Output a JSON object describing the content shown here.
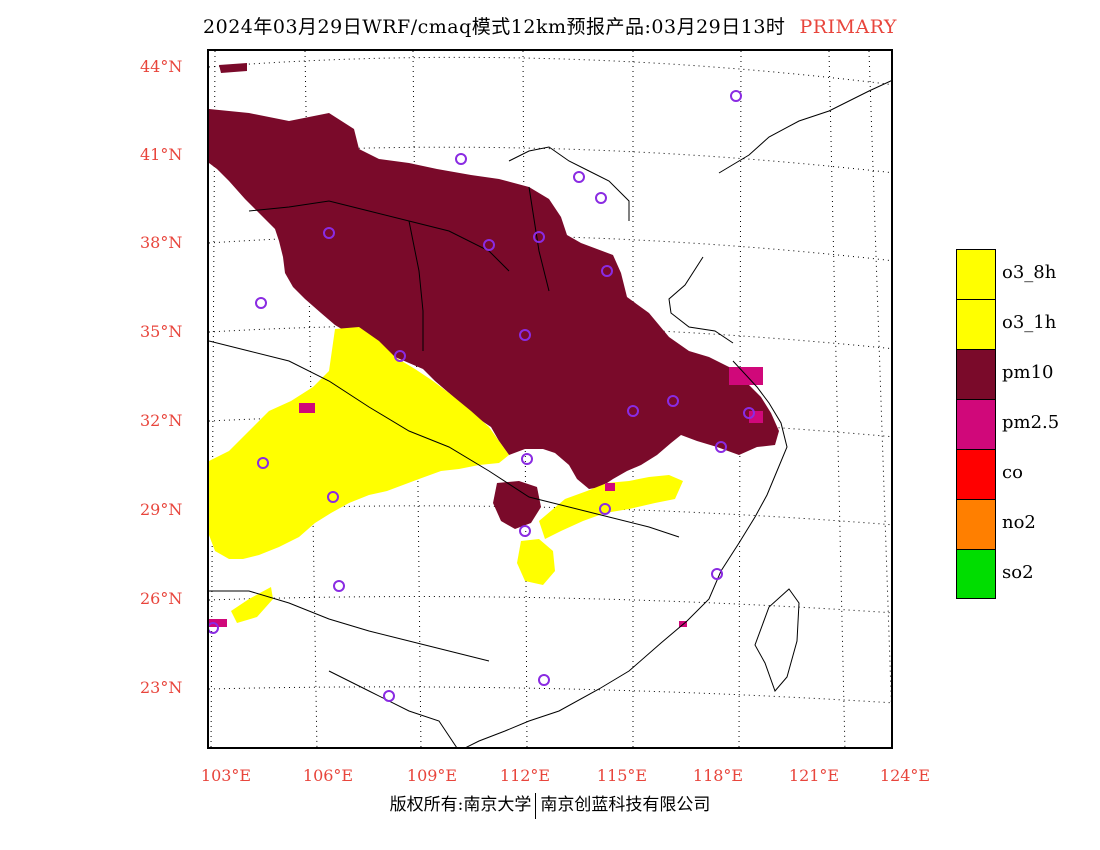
{
  "title": "2024年03月29日WRF/cmaq模式12km预报产品:03月29日13时",
  "title_tag": "PRIMARY",
  "colors": {
    "accent": "#e8453c",
    "pm10": "#7a0a2a",
    "o3": "#ffff00",
    "pm25": "#d0087a",
    "station": "#8a2be2"
  },
  "lat_labels": [
    "44°N",
    "41°N",
    "38°N",
    "35°N",
    "32°N",
    "29°N",
    "26°N",
    "23°N"
  ],
  "lon_labels": [
    "103°E",
    "106°E",
    "109°E",
    "112°E",
    "115°E",
    "118°E",
    "121°E",
    "124°E"
  ],
  "legend": [
    {
      "label": "o3_8h",
      "color": "#ffff00"
    },
    {
      "label": "o3_1h",
      "color": "#ffff00"
    },
    {
      "label": "pm10",
      "color": "#7a0a2a"
    },
    {
      "label": "pm2.5",
      "color": "#d0087a"
    },
    {
      "label": "co",
      "color": "#ff0000"
    },
    {
      "label": "no2",
      "color": "#ff7f00"
    },
    {
      "label": "so2",
      "color": "#00dd00"
    }
  ],
  "footer": {
    "left": "版权所有:南京大学",
    "right": "南京创蓝科技有限公司"
  }
}
